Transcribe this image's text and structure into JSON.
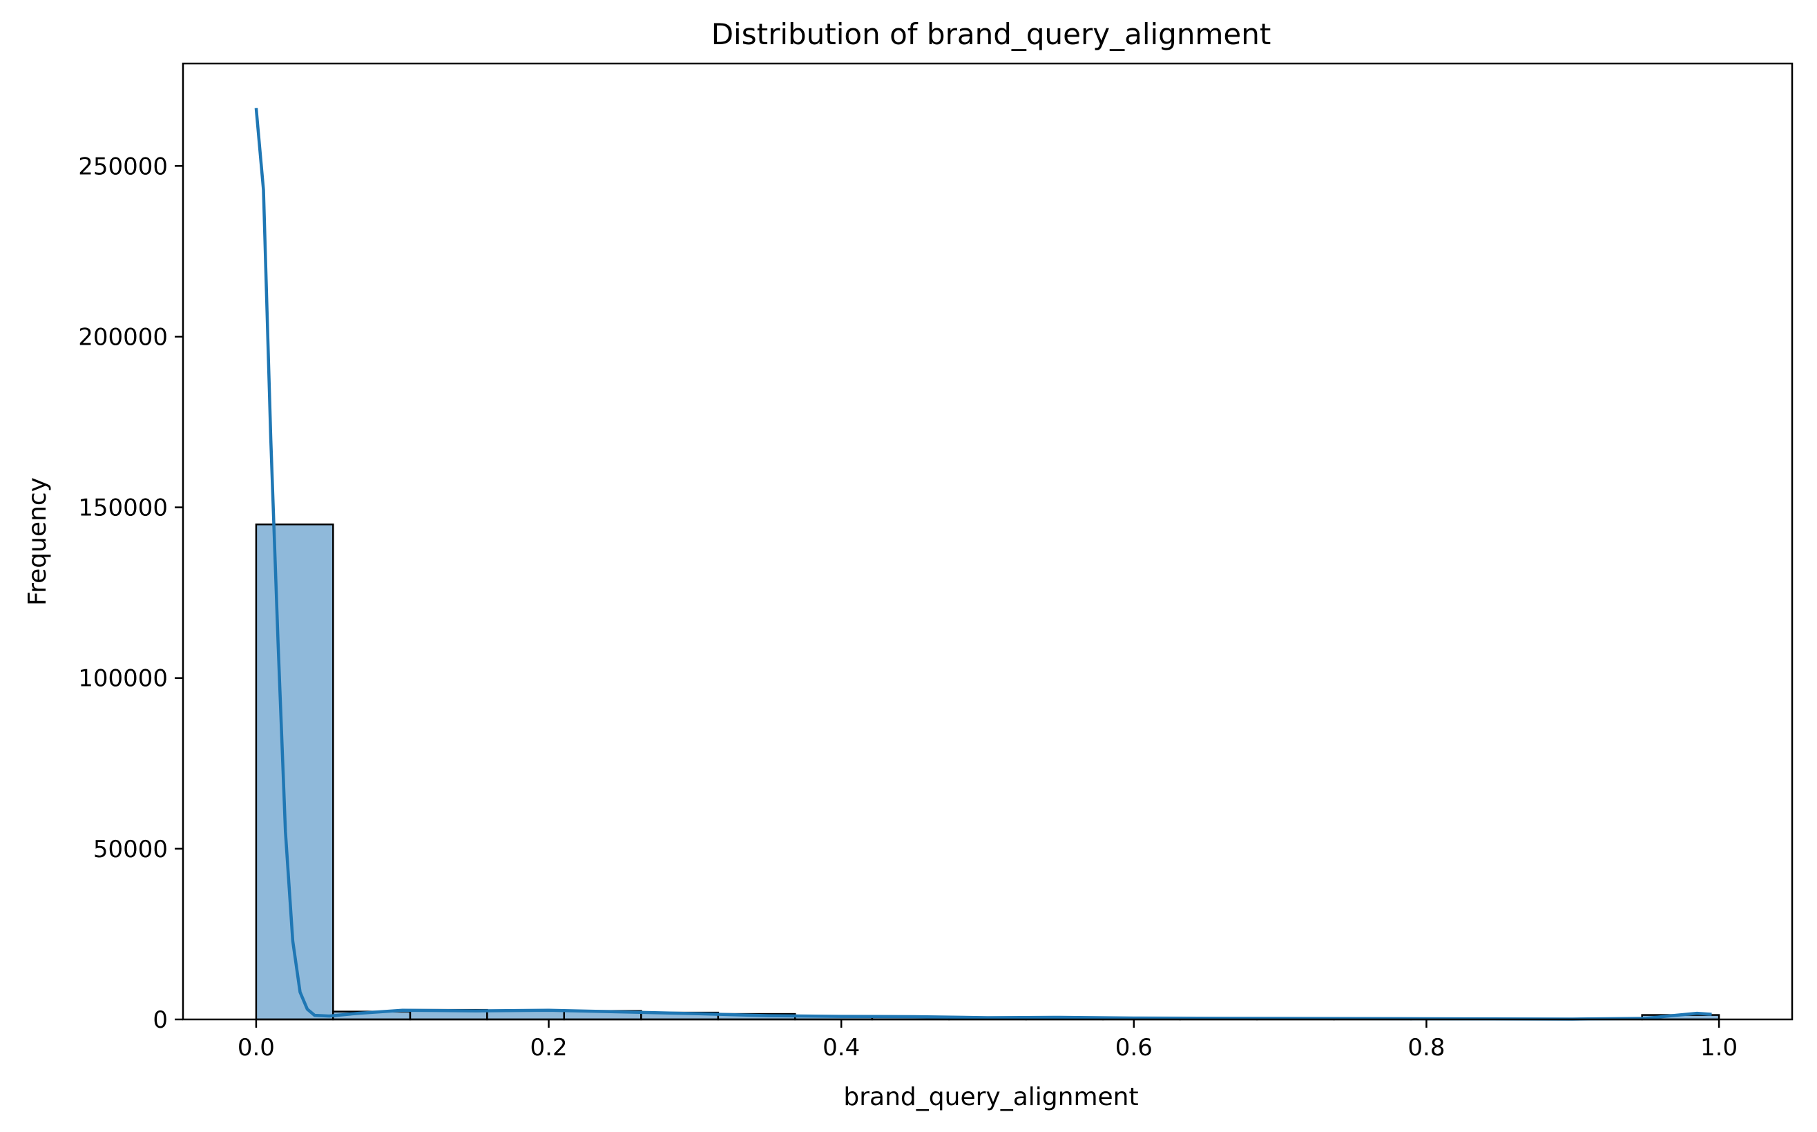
{
  "chart_data": {
    "type": "bar",
    "title": "Distribution of brand_query_alignment",
    "xlabel": "brand_query_alignment",
    "ylabel": "Frequency",
    "xlim": [
      -0.05,
      1.05
    ],
    "ylim": [
      0,
      280000
    ],
    "x_ticks": [
      0.0,
      0.2,
      0.4,
      0.6,
      0.8,
      1.0
    ],
    "x_tick_labels": [
      "0.0",
      "0.2",
      "0.4",
      "0.6",
      "0.8",
      "1.0"
    ],
    "y_ticks": [
      0,
      50000,
      100000,
      150000,
      200000,
      250000
    ],
    "y_tick_labels": [
      "0",
      "50000",
      "100000",
      "150000",
      "200000",
      "250000"
    ],
    "grid": false,
    "colors": {
      "bar_fill": "#8fb9da",
      "bar_edge": "#000000",
      "kde_line": "#1f77b4"
    },
    "histogram": {
      "bin_edges": [
        0.0,
        0.0526,
        0.1053,
        0.1579,
        0.2105,
        0.2632,
        0.3158,
        0.3684,
        0.4211,
        0.4737,
        0.5263,
        0.5789,
        0.6316,
        0.6842,
        0.7368,
        0.7895,
        0.8421,
        0.8947,
        0.9474,
        1.0
      ],
      "counts": [
        145000,
        2300,
        2800,
        2600,
        2500,
        2000,
        1600,
        1000,
        800,
        600,
        450,
        350,
        250,
        200,
        150,
        100,
        80,
        60,
        1300
      ]
    },
    "kde": {
      "name": "KDE",
      "x": [
        0.0,
        0.005,
        0.01,
        0.015,
        0.02,
        0.025,
        0.03,
        0.035,
        0.04,
        0.05,
        0.07,
        0.1,
        0.15,
        0.2,
        0.25,
        0.3,
        0.35,
        0.4,
        0.45,
        0.5,
        0.55,
        0.6,
        0.7,
        0.8,
        0.9,
        0.95,
        0.97,
        0.985,
        0.995
      ],
      "y": [
        267000,
        243000,
        170000,
        110000,
        55000,
        23000,
        8000,
        3000,
        1200,
        1000,
        1800,
        2700,
        2500,
        2700,
        2200,
        1700,
        1100,
        900,
        800,
        500,
        600,
        400,
        300,
        200,
        100,
        300,
        1200,
        1800,
        1500
      ]
    }
  }
}
